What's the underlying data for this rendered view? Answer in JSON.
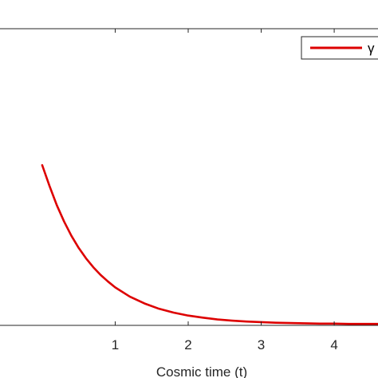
{
  "chart_data": {
    "type": "line",
    "title": "",
    "xlabel": "Cosmic time (t)",
    "ylabel": "",
    "xlim": [
      -0.6,
      4.6
    ],
    "ylim": [
      0,
      1
    ],
    "x_ticks": [
      1,
      2,
      3,
      4
    ],
    "x_tick_labels": [
      "1",
      "2",
      "3",
      "4"
    ],
    "grid": false,
    "legend_position": "top-right",
    "series": [
      {
        "name": "γ",
        "color": "#dd0000",
        "x": [
          0,
          0.1,
          0.2,
          0.3,
          0.4,
          0.5,
          0.6,
          0.7,
          0.8,
          0.9,
          1.0,
          1.2,
          1.4,
          1.6,
          1.8,
          2.0,
          2.2,
          2.4,
          2.6,
          2.8,
          3.0,
          3.2,
          3.4,
          3.6,
          3.8,
          4.0,
          4.2,
          4.4,
          4.6
        ],
        "y": [
          0.54,
          0.47,
          0.405,
          0.35,
          0.302,
          0.261,
          0.226,
          0.196,
          0.17,
          0.148,
          0.128,
          0.097,
          0.074,
          0.056,
          0.043,
          0.033,
          0.026,
          0.02,
          0.016,
          0.013,
          0.011,
          0.009,
          0.008,
          0.007,
          0.006,
          0.006,
          0.005,
          0.005,
          0.005
        ]
      }
    ]
  }
}
